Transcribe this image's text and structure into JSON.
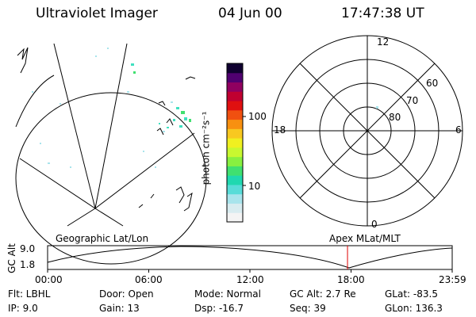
{
  "header": {
    "instrument": "Ultraviolet Imager",
    "date": "04 Jun 00",
    "time": "17:47:38 UT"
  },
  "colorbar": {
    "label": "photon cm⁻²s⁻¹",
    "ticks": [
      "100",
      "10"
    ],
    "colors": [
      "#f4f4f4",
      "#d8ecf0",
      "#a8e4ec",
      "#58dcd8",
      "#20d8b0",
      "#40e070",
      "#88f040",
      "#c8f830",
      "#f0f020",
      "#f8c820",
      "#f89010",
      "#f05010",
      "#e01010",
      "#c00030",
      "#900060",
      "#500070",
      "#100030"
    ]
  },
  "polar_plot": {
    "labels": {
      "top": "12",
      "left": "18",
      "right": "6",
      "bottom": "0",
      "ring60": "60",
      "ring70": "70",
      "ring80": "80"
    }
  },
  "timeline": {
    "y_axis_label": "GC Alt",
    "y_max": "9.0",
    "y_min": "1.8",
    "left_title": "Geographic Lat/Lon",
    "right_title": "Apex MLat/MLT",
    "x_ticks": [
      "00:00",
      "06:00",
      "12:00",
      "18:00",
      "23:59"
    ],
    "current_time_hours": 17.79
  },
  "footer": {
    "flt": "Flt: LBHL",
    "door": "Door: Open",
    "mode": "Mode: Normal",
    "gcalt": "GC Alt: 2.7 Re",
    "glat": "GLat: -83.5",
    "ip": "IP:  9.0",
    "gain": "Gain: 13",
    "dsp": "Dsp:  -16.7",
    "seq": "Seq: 39",
    "glon": "GLon: 136.3"
  }
}
